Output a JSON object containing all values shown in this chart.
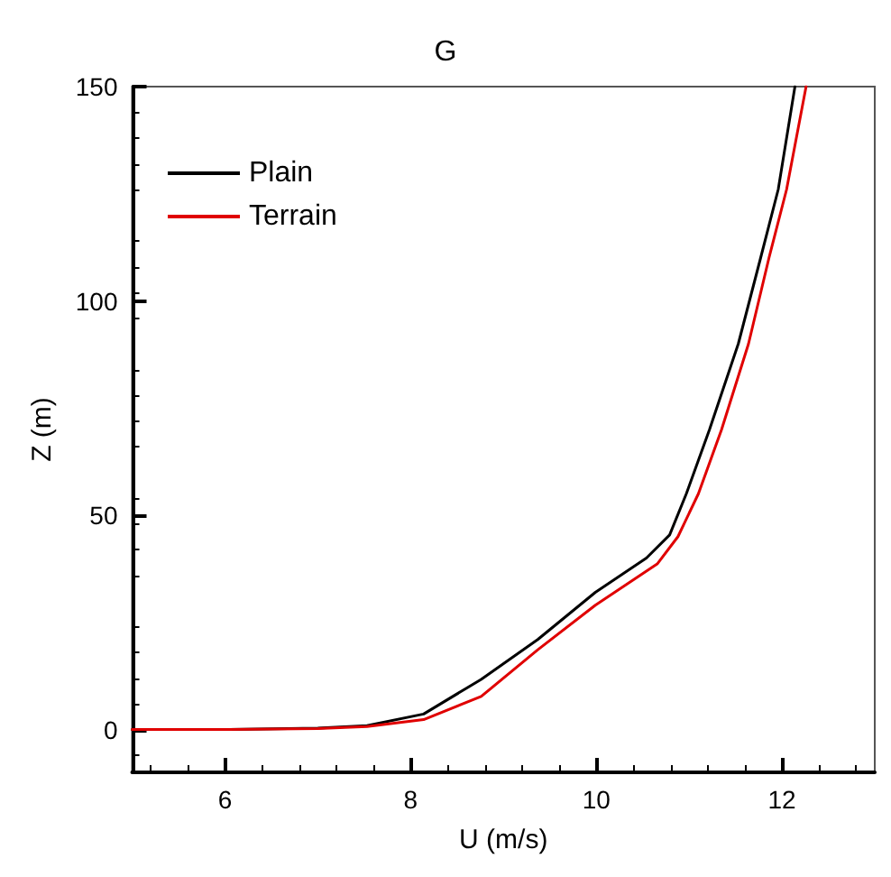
{
  "chart_data": {
    "type": "line",
    "title": "G",
    "xlabel": "U (m/s)",
    "ylabel": "Z (m)",
    "xlim": [
      5,
      13
    ],
    "xticks": [
      6,
      8,
      10,
      12
    ],
    "ylim": [
      -10,
      150
    ],
    "yticks": [
      0,
      50,
      100,
      150
    ],
    "grid": false,
    "legend": "top left",
    "marker": "none",
    "line_style": "solid",
    "series": [
      {
        "name": "Plain",
        "color": "#000000",
        "x": [
          5,
          6,
          7,
          7.53,
          8.14,
          8.76,
          9.37,
          9.99,
          10.54,
          10.79,
          10.97,
          11.22,
          11.53,
          11.77,
          11.96,
          12.14
        ],
        "values": [
          0,
          0,
          0.3,
          0.9,
          3.6,
          11.7,
          21,
          32,
          40,
          45.4,
          55,
          70,
          90,
          110,
          126,
          150
        ]
      },
      {
        "name": "Terrain",
        "color": "#e00000",
        "x": [
          5,
          6,
          7,
          7.53,
          8.14,
          8.76,
          9.37,
          9.99,
          10.66,
          10.88,
          11.1,
          11.35,
          11.64,
          11.86,
          12.05,
          12.26
        ],
        "values": [
          0,
          0,
          0.2,
          0.7,
          2.3,
          7.7,
          18.6,
          29,
          38.7,
          45,
          55,
          70,
          90,
          110,
          126,
          150
        ]
      }
    ]
  }
}
